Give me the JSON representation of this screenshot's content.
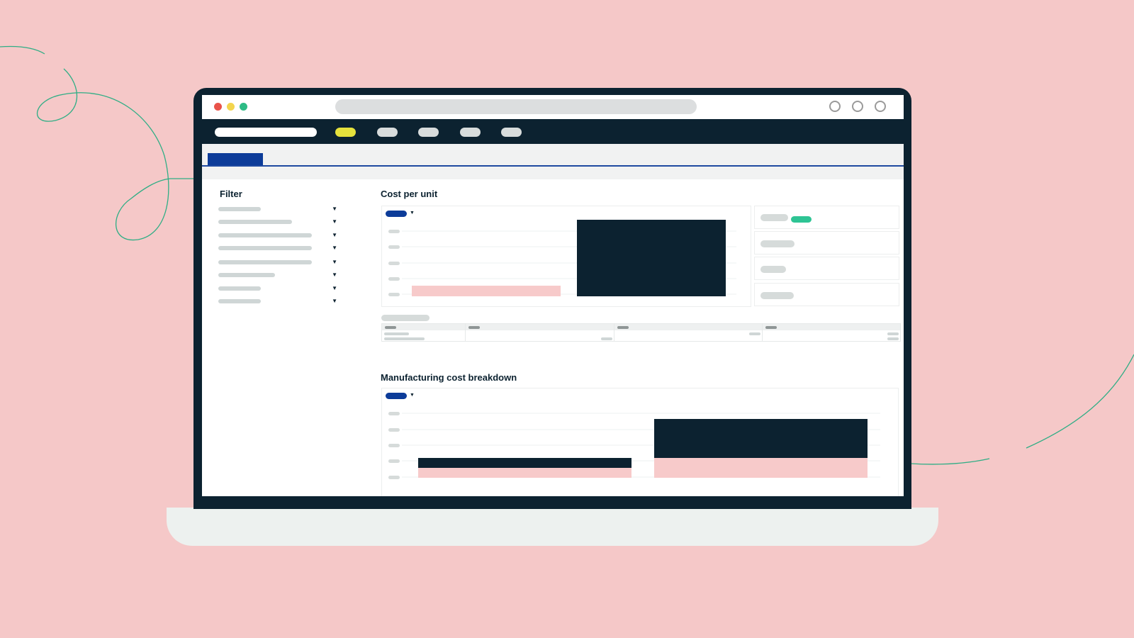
{
  "colors": {
    "background": "#f5c8c8",
    "bezel": "#0c2230",
    "navbar": "#0c2230",
    "accent_blue": "#0d3c99",
    "nav_active": "#e6e23c",
    "kpi_tag": "#2ec494",
    "bar_dark": "#0c2230",
    "bar_pink": "#f7caca",
    "placeholder": "#d6dbda"
  },
  "browser": {
    "window_controls": [
      "close-dot",
      "minimize-dot",
      "zoom-dot"
    ],
    "right_controls": [
      "circle-icon",
      "circle-icon",
      "circle-icon"
    ]
  },
  "nav": {
    "items": [
      "nav-item-1",
      "nav-item-2",
      "nav-item-3",
      "nav-item-4",
      "nav-item-5"
    ],
    "active_index": 0
  },
  "filter": {
    "title": "Filter",
    "row_count": 8
  },
  "cost_per_unit": {
    "title": "Cost per unit"
  },
  "manufacturing": {
    "title": "Manufacturing cost breakdown"
  }
}
